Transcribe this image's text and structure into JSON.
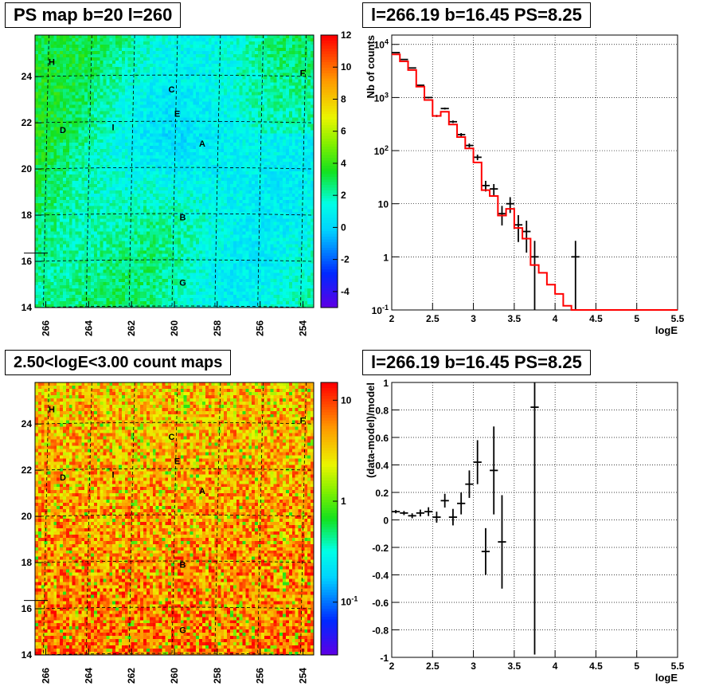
{
  "panels": {
    "ps_map_title": "PS map b=20 l=260",
    "count_map_title": "2.50<logE<3.00 count maps",
    "spectrum_title": "l=266.19 b=16.45 PS=8.25",
    "residual_title": "l=266.19 b=16.45 PS=8.25"
  },
  "sources": [
    "A",
    "B",
    "C",
    "D",
    "E",
    "F",
    "G",
    "H",
    "I"
  ],
  "colors": {
    "data": "#000000",
    "model": "#ff0000",
    "frame": "#000000"
  },
  "chart_data": [
    {
      "id": "ps_map",
      "type": "heatmap",
      "title": "PS map b=20 l=260",
      "xlim": [
        266.5,
        253.5
      ],
      "ylim": [
        14,
        25.8
      ],
      "x_ticks": [
        "266",
        "264",
        "262",
        "260",
        "258",
        "256",
        "254"
      ],
      "y_ticks": [
        "14",
        "16",
        "18",
        "20",
        "22",
        "24"
      ],
      "colorbar": {
        "range": [
          -5,
          12
        ],
        "ticks": [
          "-4",
          "-2",
          "0",
          "2",
          "4",
          "6",
          "8",
          "10",
          "12"
        ]
      }
    },
    {
      "id": "count_map",
      "type": "heatmap",
      "title": "2.50<logE<3.00 count maps",
      "xlim": [
        266.5,
        253.5
      ],
      "ylim": [
        14,
        25.8
      ],
      "x_ticks": [
        "266",
        "264",
        "262",
        "260",
        "258",
        "256",
        "254"
      ],
      "y_ticks": [
        "14",
        "16",
        "18",
        "20",
        "22",
        "24"
      ],
      "colorbar": {
        "scale": "log",
        "range": [
          0.03,
          15
        ],
        "ticks": [
          "10^-1",
          "1",
          "10"
        ]
      }
    },
    {
      "id": "spectrum",
      "type": "line",
      "title": "l=266.19 b=16.45 PS=8.25",
      "xlabel": "logE",
      "ylabel": "Nb of counts",
      "xlim": [
        2,
        5.5
      ],
      "ylim": [
        0.1,
        15000
      ],
      "yscale": "log",
      "grid": true,
      "x_ticks": [
        "2",
        "2.5",
        "3",
        "3.5",
        "4",
        "4.5",
        "5",
        "5.5"
      ],
      "y_ticks": [
        "10^-1",
        "1",
        "10",
        "10^2",
        "10^3",
        "10^4"
      ],
      "bin_width": 0.1,
      "series": [
        {
          "name": "data",
          "type": "errorbar",
          "x": [
            2.05,
            2.15,
            2.25,
            2.35,
            2.45,
            2.55,
            2.65,
            2.75,
            2.85,
            2.95,
            3.05,
            3.15,
            3.25,
            3.35,
            3.45,
            3.55,
            3.65,
            3.75,
            4.25
          ],
          "y": [
            7000,
            5200,
            3600,
            1700,
            1000,
            450,
            620,
            350,
            200,
            125,
            75,
            22,
            19,
            6.5,
            10,
            4,
            3,
            1,
            1
          ],
          "yerr_low": [
            85,
            72,
            60,
            41,
            32,
            21,
            25,
            19,
            14,
            11,
            9,
            5,
            4.5,
            2.6,
            3.3,
            2.1,
            1.8,
            0.9,
            0.9
          ],
          "yerr_high": [
            85,
            72,
            60,
            41,
            32,
            21,
            25,
            19,
            14,
            11,
            9,
            5,
            4.5,
            2.6,
            3.3,
            2.1,
            1.8,
            1,
            1
          ]
        },
        {
          "name": "model",
          "type": "step",
          "x": [
            2.05,
            2.15,
            2.25,
            2.35,
            2.45,
            2.55,
            2.65,
            2.75,
            2.85,
            2.95,
            3.05,
            3.15,
            3.25,
            3.35,
            3.45,
            3.55,
            3.65,
            3.75,
            3.85,
            3.95,
            4.05,
            4.15,
            4.25,
            4.35,
            4.45,
            4.55,
            4.65,
            4.75,
            4.85,
            4.95,
            5.05,
            5.15,
            5.25,
            5.35,
            5.45
          ],
          "y": [
            6500,
            4800,
            3300,
            1600,
            900,
            450,
            540,
            310,
            180,
            110,
            60,
            18,
            14,
            6,
            8,
            3.5,
            2.2,
            0.7,
            0.5,
            0.3,
            0.2,
            0.12,
            0.1,
            0.1,
            0.1,
            0.1,
            0.1,
            0.1,
            0.1,
            0.1,
            0.1,
            0.1,
            0.1,
            0.1,
            0.1
          ]
        }
      ]
    },
    {
      "id": "residual",
      "type": "scatter",
      "title": "l=266.19 b=16.45 PS=8.25",
      "xlabel": "logE",
      "ylabel": "(data-model)/model",
      "xlim": [
        2,
        5.5
      ],
      "ylim": [
        -1,
        1
      ],
      "grid": true,
      "x_ticks": [
        "2",
        "2.5",
        "3",
        "3.5",
        "4",
        "4.5",
        "5",
        "5.5"
      ],
      "y_ticks": [
        "-1",
        "-0.8",
        "-0.6",
        "-0.4",
        "-0.2",
        "0",
        "0.2",
        "0.4",
        "0.6",
        "0.8",
        "1"
      ],
      "bin_width": 0.1,
      "series": [
        {
          "name": "residual",
          "type": "errorbar",
          "x": [
            2.05,
            2.15,
            2.25,
            2.35,
            2.45,
            2.55,
            2.65,
            2.75,
            2.85,
            2.95,
            3.05,
            3.15,
            3.25,
            3.35,
            3.75
          ],
          "y": [
            0.06,
            0.05,
            0.03,
            0.05,
            0.06,
            0.02,
            0.14,
            0.02,
            0.12,
            0.26,
            0.42,
            -0.23,
            0.36,
            -0.16,
            0.82
          ],
          "yerr": [
            0.012,
            0.015,
            0.018,
            0.025,
            0.032,
            0.04,
            0.05,
            0.06,
            0.08,
            0.1,
            0.16,
            0.17,
            0.32,
            0.34,
            1.8
          ]
        }
      ]
    }
  ]
}
